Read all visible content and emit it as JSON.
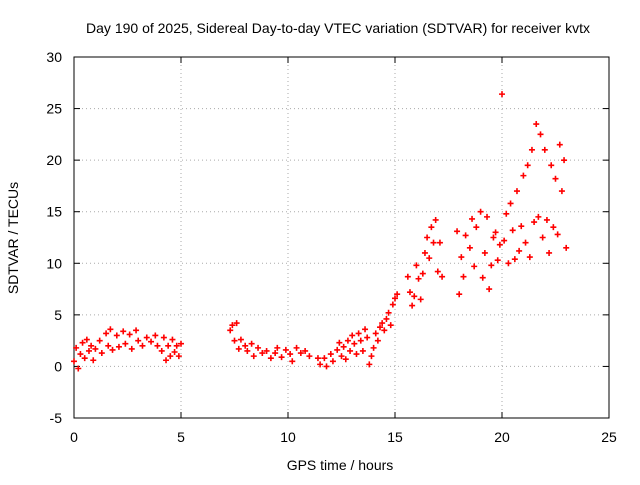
{
  "chart_data": {
    "type": "scatter",
    "title": "Day 190 of 2025, Sidereal Day-to-day VTEC variation (SDTVAR) for receiver kvtx",
    "xlabel": "GPS time / hours",
    "ylabel": "SDTVAR / TECUs",
    "xlim": [
      0,
      25
    ],
    "ylim": [
      -5,
      30
    ],
    "x_ticks": [
      0,
      5,
      10,
      15,
      20,
      25
    ],
    "y_ticks": [
      -5,
      0,
      5,
      10,
      15,
      20,
      25,
      30
    ],
    "x_tick_labels": [
      "0",
      "5",
      "10",
      "15",
      "20",
      "25"
    ],
    "y_tick_labels": [
      "-5",
      "0",
      "5",
      "10",
      "15",
      "20",
      "25",
      "30"
    ],
    "grid": true,
    "marker": "plus",
    "colors": {
      "series": "#ff0000",
      "grid": "#aaaaaa",
      "axes": "#000000"
    },
    "series": [
      {
        "name": "SDTVAR",
        "points": [
          [
            0.0,
            0.5
          ],
          [
            0.1,
            1.8
          ],
          [
            0.2,
            -0.2
          ],
          [
            0.3,
            1.2
          ],
          [
            0.4,
            2.3
          ],
          [
            0.5,
            0.8
          ],
          [
            0.6,
            2.6
          ],
          [
            0.7,
            1.5
          ],
          [
            0.8,
            2.0
          ],
          [
            0.9,
            0.6
          ],
          [
            1.0,
            1.7
          ],
          [
            1.2,
            2.5
          ],
          [
            1.3,
            1.3
          ],
          [
            1.5,
            3.2
          ],
          [
            1.6,
            2.0
          ],
          [
            1.7,
            3.6
          ],
          [
            1.8,
            1.6
          ],
          [
            2.0,
            3.0
          ],
          [
            2.1,
            1.9
          ],
          [
            2.3,
            3.4
          ],
          [
            2.4,
            2.2
          ],
          [
            2.6,
            3.1
          ],
          [
            2.7,
            1.7
          ],
          [
            2.9,
            3.5
          ],
          [
            3.0,
            2.5
          ],
          [
            3.2,
            2.0
          ],
          [
            3.4,
            2.8
          ],
          [
            3.6,
            2.4
          ],
          [
            3.8,
            3.0
          ],
          [
            3.9,
            2.0
          ],
          [
            4.1,
            1.5
          ],
          [
            4.2,
            2.8
          ],
          [
            4.3,
            0.6
          ],
          [
            4.4,
            2.0
          ],
          [
            4.5,
            1.0
          ],
          [
            4.6,
            2.6
          ],
          [
            4.7,
            1.4
          ],
          [
            4.8,
            2.0
          ],
          [
            4.9,
            1.0
          ],
          [
            5.0,
            2.2
          ],
          [
            7.3,
            3.5
          ],
          [
            7.4,
            4.0
          ],
          [
            7.5,
            2.5
          ],
          [
            7.6,
            4.2
          ],
          [
            7.7,
            1.7
          ],
          [
            7.8,
            2.6
          ],
          [
            8.0,
            2.0
          ],
          [
            8.1,
            1.5
          ],
          [
            8.3,
            2.2
          ],
          [
            8.4,
            1.0
          ],
          [
            8.6,
            1.8
          ],
          [
            8.8,
            1.3
          ],
          [
            9.0,
            1.5
          ],
          [
            9.2,
            0.8
          ],
          [
            9.4,
            1.3
          ],
          [
            9.5,
            1.8
          ],
          [
            9.7,
            0.9
          ],
          [
            9.9,
            1.6
          ],
          [
            10.1,
            1.2
          ],
          [
            10.2,
            0.5
          ],
          [
            10.4,
            1.8
          ],
          [
            10.6,
            1.3
          ],
          [
            10.8,
            1.5
          ],
          [
            11.0,
            1.0
          ],
          [
            11.4,
            0.8
          ],
          [
            11.5,
            0.2
          ],
          [
            11.7,
            0.8
          ],
          [
            11.8,
            0.0
          ],
          [
            12.0,
            1.2
          ],
          [
            12.1,
            0.5
          ],
          [
            12.3,
            1.6
          ],
          [
            12.4,
            2.3
          ],
          [
            12.5,
            1.0
          ],
          [
            12.6,
            1.9
          ],
          [
            12.7,
            0.7
          ],
          [
            12.8,
            2.5
          ],
          [
            12.9,
            1.5
          ],
          [
            13.0,
            3.0
          ],
          [
            13.1,
            2.2
          ],
          [
            13.2,
            1.2
          ],
          [
            13.3,
            3.2
          ],
          [
            13.4,
            2.5
          ],
          [
            13.5,
            1.5
          ],
          [
            13.6,
            3.6
          ],
          [
            13.7,
            2.8
          ],
          [
            13.8,
            0.2
          ],
          [
            13.9,
            1.0
          ],
          [
            14.0,
            1.8
          ],
          [
            14.1,
            3.2
          ],
          [
            14.2,
            2.5
          ],
          [
            14.3,
            3.8
          ],
          [
            14.4,
            4.2
          ],
          [
            14.5,
            3.5
          ],
          [
            14.6,
            4.6
          ],
          [
            14.7,
            5.2
          ],
          [
            14.8,
            4.0
          ],
          [
            14.9,
            6.0
          ],
          [
            15.0,
            6.6
          ],
          [
            15.1,
            7.0
          ],
          [
            15.6,
            8.7
          ],
          [
            15.7,
            7.2
          ],
          [
            15.8,
            5.9
          ],
          [
            15.9,
            6.8
          ],
          [
            16.0,
            9.8
          ],
          [
            16.1,
            8.5
          ],
          [
            16.2,
            6.5
          ],
          [
            16.3,
            9.0
          ],
          [
            16.4,
            11.0
          ],
          [
            16.5,
            12.5
          ],
          [
            16.6,
            10.5
          ],
          [
            16.7,
            13.5
          ],
          [
            16.8,
            12.0
          ],
          [
            16.9,
            14.2
          ],
          [
            17.0,
            9.2
          ],
          [
            17.1,
            12.0
          ],
          [
            17.2,
            8.7
          ],
          [
            17.9,
            13.1
          ],
          [
            18.0,
            7.0
          ],
          [
            18.1,
            10.6
          ],
          [
            18.2,
            8.7
          ],
          [
            18.3,
            12.7
          ],
          [
            18.5,
            11.5
          ],
          [
            18.6,
            14.3
          ],
          [
            18.7,
            9.7
          ],
          [
            18.8,
            13.5
          ],
          [
            19.0,
            15.0
          ],
          [
            19.1,
            8.6
          ],
          [
            19.2,
            11.0
          ],
          [
            19.3,
            14.5
          ],
          [
            19.4,
            7.5
          ],
          [
            19.5,
            9.8
          ],
          [
            19.6,
            12.5
          ],
          [
            19.7,
            13.0
          ],
          [
            19.8,
            10.3
          ],
          [
            19.9,
            11.8
          ],
          [
            20.0,
            26.4
          ],
          [
            20.1,
            12.2
          ],
          [
            20.2,
            14.8
          ],
          [
            20.3,
            10.0
          ],
          [
            20.4,
            15.8
          ],
          [
            20.5,
            13.2
          ],
          [
            20.6,
            10.4
          ],
          [
            20.7,
            17.0
          ],
          [
            20.8,
            11.2
          ],
          [
            20.9,
            13.6
          ],
          [
            21.0,
            18.5
          ],
          [
            21.1,
            12.0
          ],
          [
            21.2,
            19.5
          ],
          [
            21.3,
            10.6
          ],
          [
            21.4,
            21.0
          ],
          [
            21.5,
            14.0
          ],
          [
            21.6,
            23.5
          ],
          [
            21.7,
            14.5
          ],
          [
            21.8,
            22.5
          ],
          [
            21.9,
            12.5
          ],
          [
            22.0,
            21.0
          ],
          [
            22.1,
            14.2
          ],
          [
            22.2,
            11.0
          ],
          [
            22.3,
            19.5
          ],
          [
            22.4,
            13.5
          ],
          [
            22.5,
            18.2
          ],
          [
            22.6,
            12.8
          ],
          [
            22.7,
            21.5
          ],
          [
            22.8,
            17.0
          ],
          [
            22.9,
            20.0
          ],
          [
            23.0,
            11.5
          ]
        ]
      }
    ]
  }
}
